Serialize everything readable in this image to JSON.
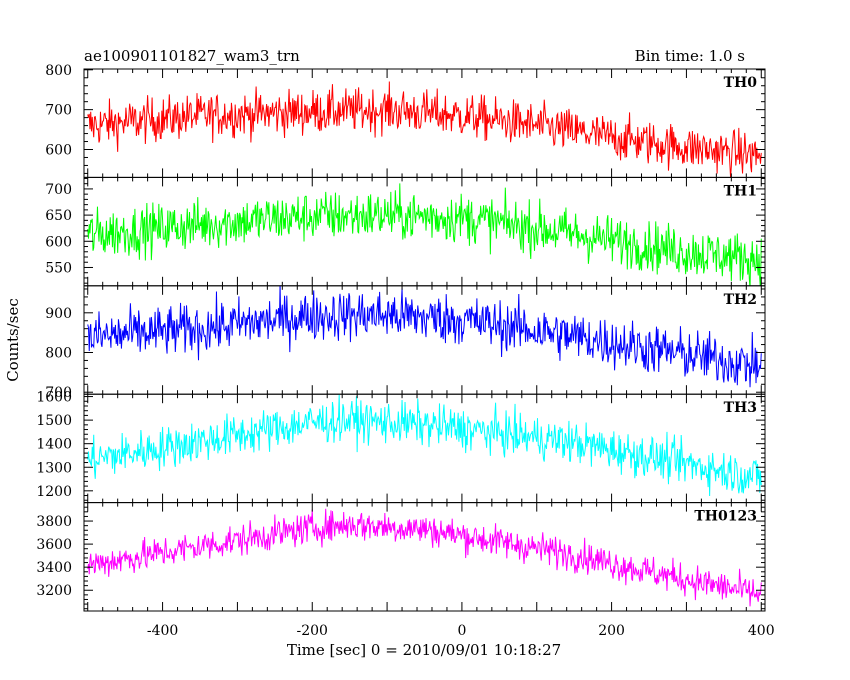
{
  "chart_data": {
    "type": "line",
    "title": "ae100901101827_wam3_trn",
    "bin_time": "Bin time: 1.0 s",
    "xlabel": "Time [sec] 0 = 2010/09/01 10:18:27",
    "ylabel": "Counts/sec",
    "xlim": [
      -505,
      405
    ],
    "xticks": [
      -400,
      -200,
      0,
      200,
      400
    ],
    "panels": [
      {
        "name": "TH0",
        "color": "#ff0000",
        "ylim": [
          530,
          802
        ],
        "yticks": [
          600,
          700,
          800
        ],
        "trend": [
          [
            -500,
            660
          ],
          [
            -350,
            685
          ],
          [
            -200,
            695
          ],
          [
            -100,
            700
          ],
          [
            0,
            685
          ],
          [
            100,
            660
          ],
          [
            200,
            630
          ],
          [
            300,
            605
          ],
          [
            400,
            585
          ]
        ],
        "noise": 28
      },
      {
        "name": "TH1",
        "color": "#00ff00",
        "ylim": [
          515,
          722
        ],
        "yticks": [
          550,
          600,
          650,
          700
        ],
        "trend": [
          [
            -500,
            612
          ],
          [
            -350,
            632
          ],
          [
            -200,
            648
          ],
          [
            -100,
            650
          ],
          [
            0,
            645
          ],
          [
            100,
            625
          ],
          [
            200,
            602
          ],
          [
            300,
            580
          ],
          [
            400,
            565
          ]
        ],
        "noise": 24
      },
      {
        "name": "TH2",
        "color": "#0000ff",
        "ylim": [
          695,
          968
        ],
        "yticks": [
          700,
          800,
          900
        ],
        "trend": [
          [
            -500,
            838
          ],
          [
            -350,
            860
          ],
          [
            -200,
            893
          ],
          [
            -100,
            895
          ],
          [
            0,
            882
          ],
          [
            100,
            855
          ],
          [
            200,
            825
          ],
          [
            300,
            795
          ],
          [
            400,
            765
          ]
        ],
        "noise": 32
      },
      {
        "name": "TH3",
        "color": "#00ffff",
        "ylim": [
          1150,
          1610
        ],
        "yticks": [
          1200,
          1300,
          1400,
          1500,
          1600
        ],
        "trend": [
          [
            -500,
            1330
          ],
          [
            -350,
            1410
          ],
          [
            -200,
            1490
          ],
          [
            -150,
            1500
          ],
          [
            -50,
            1480
          ],
          [
            50,
            1445
          ],
          [
            150,
            1405
          ],
          [
            250,
            1345
          ],
          [
            400,
            1255
          ]
        ],
        "noise": 45
      },
      {
        "name": "TH0123",
        "color": "#ff00ff",
        "ylim": [
          3020,
          3960
        ],
        "yticks": [
          3200,
          3400,
          3600,
          3800
        ],
        "trend": [
          [
            -500,
            3420
          ],
          [
            -350,
            3580
          ],
          [
            -200,
            3740
          ],
          [
            -150,
            3770
          ],
          [
            -50,
            3730
          ],
          [
            50,
            3620
          ],
          [
            150,
            3510
          ],
          [
            250,
            3360
          ],
          [
            400,
            3160
          ]
        ],
        "noise": 70
      }
    ],
    "grid": false,
    "legend": "none"
  }
}
